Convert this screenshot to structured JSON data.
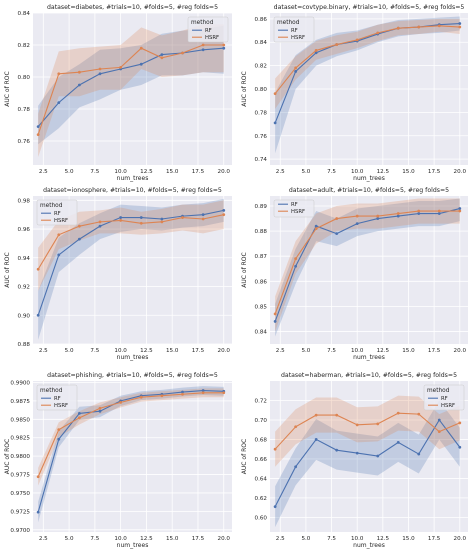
{
  "colors": {
    "rf": "#4c72b0",
    "hsrf": "#dd8452",
    "panel_bg": "#eaeaf2",
    "grid": "#ffffff",
    "text": "#262626"
  },
  "chart_data": [
    {
      "type": "line",
      "title": "dataset=diabetes, #trials=10, #folds=5, #reg folds=5",
      "xlabel": "num_trees",
      "ylabel": "AUC of ROC",
      "xlim": [
        1.5,
        20.8
      ],
      "ylim": [
        0.745,
        0.84
      ],
      "xticks": [
        "2.5",
        "5.0",
        "7.5",
        "10.0",
        "12.5",
        "15.0",
        "17.5",
        "20.0"
      ],
      "yticks": [
        "0.76",
        "0.78",
        "0.80",
        "0.82",
        "0.84"
      ],
      "legend_title": "method",
      "legend_position": "top-right",
      "x": [
        2,
        4,
        6,
        8,
        10,
        12,
        14,
        16,
        18,
        20
      ],
      "series": [
        {
          "name": "RF",
          "values": [
            0.769,
            0.784,
            0.795,
            0.802,
            0.805,
            0.808,
            0.814,
            0.815,
            0.817,
            0.818
          ],
          "lower": [
            0.758,
            0.768,
            0.781,
            0.786,
            0.792,
            0.795,
            0.801,
            0.801,
            0.803,
            0.802
          ],
          "upper": [
            0.782,
            0.8,
            0.808,
            0.817,
            0.818,
            0.82,
            0.827,
            0.829,
            0.83,
            0.832
          ]
        },
        {
          "name": "HSRF",
          "values": [
            0.764,
            0.802,
            0.803,
            0.805,
            0.806,
            0.818,
            0.812,
            0.815,
            0.82,
            0.82
          ],
          "lower": [
            0.75,
            0.788,
            0.788,
            0.792,
            0.792,
            0.805,
            0.8,
            0.801,
            0.803,
            0.803
          ],
          "upper": [
            0.777,
            0.816,
            0.818,
            0.819,
            0.82,
            0.831,
            0.826,
            0.829,
            0.833,
            0.833
          ]
        }
      ]
    },
    {
      "type": "line",
      "title": "dataset=covtype.binary, #trials=10, #folds=5, #reg folds=5",
      "xlabel": "num_trees",
      "ylabel": "AUC of ROC",
      "xlim": [
        1.5,
        20.8
      ],
      "ylim": [
        0.735,
        0.865
      ],
      "xticks": [
        "2.5",
        "5.0",
        "7.5",
        "10.0",
        "12.5",
        "15.0",
        "17.5",
        "20.0"
      ],
      "yticks": [
        "0.74",
        "0.76",
        "0.78",
        "0.80",
        "0.82",
        "0.84",
        "0.86"
      ],
      "legend_title": "method",
      "legend_position": "top-left",
      "x": [
        2,
        4,
        6,
        8,
        10,
        12,
        14,
        16,
        18,
        20
      ],
      "series": [
        {
          "name": "RF",
          "values": [
            0.771,
            0.815,
            0.831,
            0.838,
            0.841,
            0.847,
            0.852,
            0.853,
            0.855,
            0.856
          ],
          "lower": [
            0.745,
            0.8,
            0.82,
            0.828,
            0.833,
            0.84,
            0.845,
            0.847,
            0.848,
            0.85
          ],
          "upper": [
            0.797,
            0.829,
            0.842,
            0.848,
            0.85,
            0.855,
            0.859,
            0.86,
            0.861,
            0.862
          ]
        },
        {
          "name": "HSRF",
          "values": [
            0.796,
            0.818,
            0.833,
            0.838,
            0.842,
            0.848,
            0.852,
            0.853,
            0.854,
            0.853
          ],
          "lower": [
            0.783,
            0.808,
            0.825,
            0.83,
            0.835,
            0.841,
            0.846,
            0.847,
            0.849,
            0.847
          ],
          "upper": [
            0.809,
            0.828,
            0.841,
            0.846,
            0.849,
            0.855,
            0.858,
            0.859,
            0.86,
            0.86
          ]
        }
      ]
    },
    {
      "type": "line",
      "title": "dataset=ionosphere, #trials=10, #folds=5, #reg folds=5",
      "xlabel": "num_trees",
      "ylabel": "AUC of ROC",
      "xlim": [
        1.5,
        20.8
      ],
      "ylim": [
        0.88,
        0.983
      ],
      "xticks": [
        "2.5",
        "5.0",
        "7.5",
        "10.0",
        "12.5",
        "15.0",
        "17.5",
        "20.0"
      ],
      "yticks": [
        "0.88",
        "0.90",
        "0.92",
        "0.94",
        "0.96",
        "0.98"
      ],
      "legend_title": "method",
      "legend_position": "top-left",
      "x": [
        2,
        4,
        6,
        8,
        10,
        12,
        14,
        16,
        18,
        20
      ],
      "series": [
        {
          "name": "RF",
          "values": [
            0.9,
            0.942,
            0.953,
            0.962,
            0.968,
            0.968,
            0.967,
            0.969,
            0.97,
            0.973
          ],
          "lower": [
            0.883,
            0.93,
            0.942,
            0.953,
            0.958,
            0.96,
            0.959,
            0.961,
            0.962,
            0.965
          ],
          "upper": [
            0.917,
            0.954,
            0.964,
            0.971,
            0.977,
            0.976,
            0.975,
            0.977,
            0.978,
            0.981
          ]
        },
        {
          "name": "HSRF",
          "values": [
            0.932,
            0.956,
            0.962,
            0.965,
            0.966,
            0.964,
            0.965,
            0.968,
            0.967,
            0.97
          ],
          "lower": [
            0.917,
            0.946,
            0.952,
            0.957,
            0.957,
            0.956,
            0.957,
            0.959,
            0.957,
            0.96
          ],
          "upper": [
            0.947,
            0.966,
            0.972,
            0.973,
            0.975,
            0.972,
            0.974,
            0.977,
            0.977,
            0.98
          ]
        }
      ]
    },
    {
      "type": "line",
      "title": "dataset=adult, #trials=10, #folds=5, #reg folds=5",
      "xlabel": "num_trees",
      "ylabel": "AUC of ROC",
      "xlim": [
        1.5,
        20.8
      ],
      "ylim": [
        0.835,
        0.894
      ],
      "xticks": [
        "2.5",
        "5.0",
        "7.5",
        "10.0",
        "12.5",
        "15.0",
        "17.5",
        "20.0"
      ],
      "yticks": [
        "0.84",
        "0.85",
        "0.86",
        "0.87",
        "0.88",
        "0.89"
      ],
      "legend_title": "",
      "legend_position": "top-left",
      "x": [
        2,
        4,
        6,
        8,
        10,
        12,
        14,
        16,
        18,
        20
      ],
      "series": [
        {
          "name": "RF",
          "values": [
            0.844,
            0.866,
            0.882,
            0.879,
            0.883,
            0.885,
            0.886,
            0.887,
            0.887,
            0.889
          ],
          "lower": [
            0.838,
            0.859,
            0.876,
            0.874,
            0.878,
            0.88,
            0.881,
            0.882,
            0.882,
            0.884
          ],
          "upper": [
            0.851,
            0.873,
            0.888,
            0.885,
            0.889,
            0.89,
            0.891,
            0.892,
            0.892,
            0.893
          ]
        },
        {
          "name": "HSRF",
          "values": [
            0.847,
            0.869,
            0.881,
            0.885,
            0.886,
            0.886,
            0.887,
            0.888,
            0.888,
            0.888
          ],
          "lower": [
            0.84,
            0.863,
            0.875,
            0.88,
            0.881,
            0.881,
            0.882,
            0.883,
            0.883,
            0.883
          ],
          "upper": [
            0.854,
            0.876,
            0.887,
            0.89,
            0.891,
            0.891,
            0.892,
            0.893,
            0.893,
            0.893
          ]
        }
      ]
    },
    {
      "type": "line",
      "title": "dataset=phishing, #trials=10, #folds=5, #reg folds=5",
      "xlabel": "num_trees",
      "ylabel": "AUC of ROC",
      "xlim": [
        1.5,
        20.8
      ],
      "ylim": [
        0.9697,
        0.9902
      ],
      "xticks": [
        "2.5",
        "5.0",
        "7.5",
        "10.0",
        "12.5",
        "15.0",
        "17.5",
        "20.0"
      ],
      "yticks": [
        "0.9700",
        "0.9725",
        "0.9750",
        "0.9775",
        "0.9800",
        "0.9825",
        "0.9850",
        "0.9875",
        "0.9900"
      ],
      "legend_title": "method",
      "legend_position": "top-left",
      "x": [
        2,
        4,
        6,
        8,
        10,
        12,
        14,
        16,
        18,
        20
      ],
      "series": [
        {
          "name": "RF",
          "values": [
            0.9724,
            0.9823,
            0.9858,
            0.9861,
            0.9875,
            0.9882,
            0.9884,
            0.9887,
            0.9889,
            0.9888
          ],
          "lower": [
            0.971,
            0.9812,
            0.9849,
            0.9853,
            0.9868,
            0.9876,
            0.9878,
            0.9881,
            0.9883,
            0.9882
          ],
          "upper": [
            0.9738,
            0.9834,
            0.9867,
            0.9869,
            0.9882,
            0.9888,
            0.989,
            0.9893,
            0.9895,
            0.9894
          ]
        },
        {
          "name": "HSRF",
          "values": [
            0.9772,
            0.9836,
            0.9852,
            0.9865,
            0.9873,
            0.988,
            0.9882,
            0.9884,
            0.9886,
            0.9886
          ],
          "lower": [
            0.976,
            0.9826,
            0.9843,
            0.9857,
            0.9866,
            0.9874,
            0.9876,
            0.9878,
            0.988,
            0.988
          ],
          "upper": [
            0.9784,
            0.9846,
            0.9861,
            0.9873,
            0.988,
            0.9886,
            0.9888,
            0.989,
            0.9892,
            0.9892
          ]
        }
      ]
    },
    {
      "type": "line",
      "title": "dataset=haberman, #trials=10, #folds=5, #reg folds=5",
      "xlabel": "num_trees",
      "ylabel": "AUC of ROC",
      "xlim": [
        1.5,
        20.8
      ],
      "ylim": [
        0.585,
        0.74
      ],
      "xticks": [
        "2.5",
        "5.0",
        "7.5",
        "10.0",
        "12.5",
        "15.0",
        "17.5",
        "20.0"
      ],
      "yticks": [
        "0.60",
        "0.62",
        "0.64",
        "0.66",
        "0.68",
        "0.70",
        "0.72"
      ],
      "legend_title": "method",
      "legend_position": "top-right",
      "x": [
        2,
        4,
        6,
        8,
        10,
        12,
        14,
        16,
        18,
        20
      ],
      "series": [
        {
          "name": "RF",
          "values": [
            0.611,
            0.652,
            0.68,
            0.669,
            0.666,
            0.663,
            0.677,
            0.665,
            0.7,
            0.672
          ],
          "lower": [
            0.59,
            0.633,
            0.659,
            0.649,
            0.646,
            0.643,
            0.657,
            0.645,
            0.68,
            0.652
          ],
          "upper": [
            0.632,
            0.671,
            0.701,
            0.689,
            0.686,
            0.683,
            0.697,
            0.685,
            0.72,
            0.692
          ]
        },
        {
          "name": "HSRF",
          "values": [
            0.67,
            0.693,
            0.705,
            0.705,
            0.695,
            0.696,
            0.707,
            0.706,
            0.688,
            0.697
          ],
          "lower": [
            0.652,
            0.675,
            0.687,
            0.687,
            0.677,
            0.678,
            0.689,
            0.688,
            0.67,
            0.679
          ],
          "upper": [
            0.688,
            0.711,
            0.723,
            0.723,
            0.713,
            0.714,
            0.725,
            0.724,
            0.706,
            0.715
          ]
        }
      ]
    }
  ]
}
